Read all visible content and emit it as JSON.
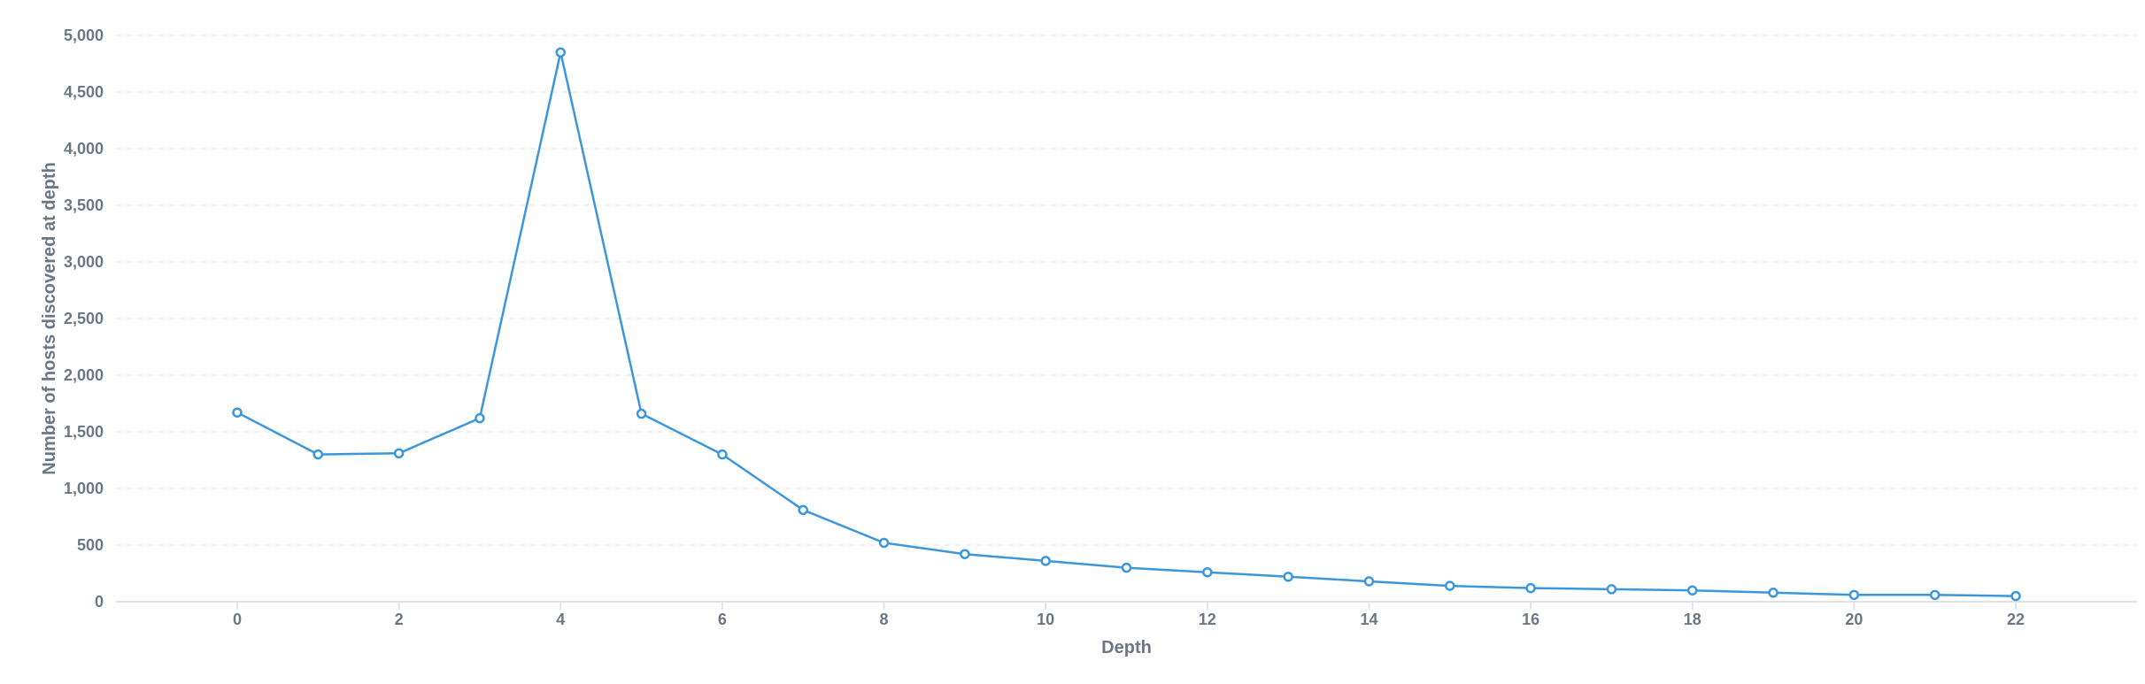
{
  "chart_data": {
    "type": "line",
    "title": "",
    "xlabel": "Depth",
    "ylabel": "Number of hosts discovered at depth",
    "xlim": [
      -1.5,
      23.5
    ],
    "ylim": [
      0,
      5000
    ],
    "x_ticks": [
      0,
      2,
      4,
      6,
      8,
      10,
      12,
      14,
      16,
      18,
      20,
      22
    ],
    "x_tick_labels": [
      "0",
      "2",
      "4",
      "6",
      "8",
      "10",
      "12",
      "14",
      "16",
      "18",
      "20",
      "22"
    ],
    "y_ticks": [
      0,
      500,
      1000,
      1500,
      2000,
      2500,
      3000,
      3500,
      4000,
      4500,
      5000
    ],
    "y_tick_labels": [
      "0",
      "500",
      "1,000",
      "1,500",
      "2,000",
      "2,500",
      "3,000",
      "3,500",
      "4,000",
      "4,500",
      "5,000"
    ],
    "grid": true,
    "legend": "none",
    "color": "#3a97dc",
    "x": [
      0,
      1,
      2,
      3,
      4,
      5,
      6,
      7,
      8,
      9,
      10,
      11,
      12,
      13,
      14,
      15,
      16,
      17,
      18,
      19,
      20,
      21,
      22
    ],
    "series": [
      {
        "values": [
          1670,
          1300,
          1310,
          1620,
          4850,
          1660,
          1300,
          810,
          520,
          420,
          360,
          300,
          260,
          220,
          180,
          140,
          120,
          110,
          100,
          80,
          60,
          60,
          50
        ]
      }
    ]
  }
}
